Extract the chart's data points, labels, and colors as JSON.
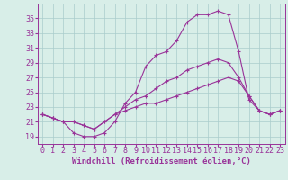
{
  "xlabel": "Windchill (Refroidissement éolien,°C)",
  "hours": [
    0,
    1,
    2,
    3,
    4,
    5,
    6,
    7,
    8,
    9,
    10,
    11,
    12,
    13,
    14,
    15,
    16,
    17,
    18,
    19,
    20,
    21,
    22,
    23
  ],
  "line1": [
    22.0,
    21.5,
    21.0,
    19.5,
    19.0,
    19.0,
    19.5,
    21.0,
    23.5,
    25.0,
    28.5,
    30.0,
    30.5,
    32.0,
    34.5,
    35.5,
    35.5,
    36.0,
    35.5,
    30.5,
    24.0,
    22.5,
    22.0,
    22.5
  ],
  "line2": [
    22.0,
    21.5,
    21.0,
    21.0,
    20.5,
    20.0,
    21.0,
    22.0,
    23.0,
    24.0,
    24.5,
    25.5,
    26.5,
    27.0,
    28.0,
    28.5,
    29.0,
    29.5,
    29.0,
    27.0,
    24.5,
    22.5,
    22.0,
    22.5
  ],
  "line3": [
    22.0,
    21.5,
    21.0,
    21.0,
    20.5,
    20.0,
    21.0,
    22.0,
    22.5,
    23.0,
    23.5,
    23.5,
    24.0,
    24.5,
    25.0,
    25.5,
    26.0,
    26.5,
    27.0,
    26.5,
    24.5,
    22.5,
    22.0,
    22.5
  ],
  "line_color": "#993399",
  "bg_color": "#d8eee8",
  "grid_color": "#aacccc",
  "axis_color": "#993399",
  "ylim": [
    18,
    37
  ],
  "yticks": [
    19,
    21,
    23,
    25,
    27,
    29,
    31,
    33,
    35
  ],
  "xlim": [
    -0.5,
    23.5
  ],
  "tick_fontsize": 6,
  "label_fontsize": 6.5
}
